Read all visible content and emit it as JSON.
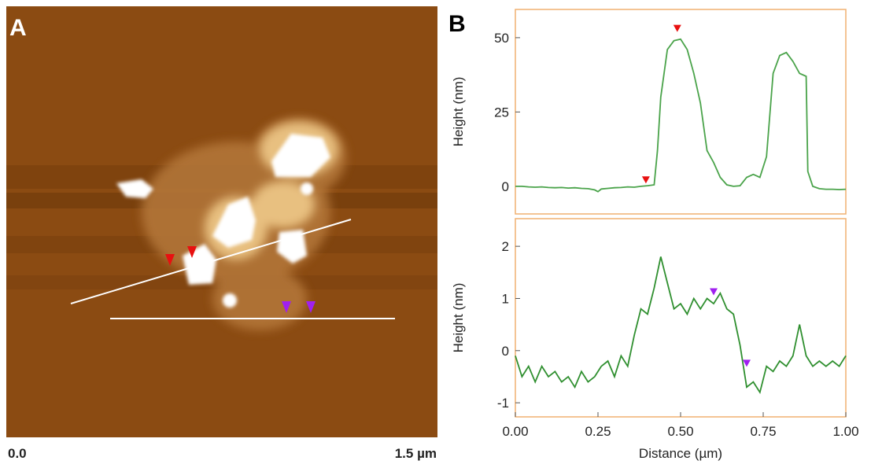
{
  "panel_a": {
    "label": "A",
    "scale_start": "0.0",
    "scale_end": "1.5 µm"
  },
  "panel_b_label": "B",
  "chart_data": [
    {
      "type": "line",
      "ylabel": "Height (nm)",
      "xlim": [
        0,
        1.0
      ],
      "ylim": [
        -9.3,
        59.5
      ],
      "yticks": [
        0,
        25,
        50
      ],
      "series": [
        {
          "color": "#4aa34a",
          "x": [
            0,
            0.02,
            0.04,
            0.06,
            0.08,
            0.1,
            0.12,
            0.14,
            0.16,
            0.18,
            0.2,
            0.22,
            0.24,
            0.25,
            0.26,
            0.28,
            0.3,
            0.32,
            0.34,
            0.36,
            0.38,
            0.4,
            0.42,
            0.43,
            0.44,
            0.46,
            0.48,
            0.5,
            0.52,
            0.54,
            0.56,
            0.58,
            0.6,
            0.62,
            0.64,
            0.66,
            0.68,
            0.7,
            0.72,
            0.74,
            0.76,
            0.78,
            0.8,
            0.82,
            0.84,
            0.86,
            0.88,
            0.885,
            0.9,
            0.92,
            0.94,
            0.96,
            0.98,
            1.0
          ],
          "values": [
            0,
            0,
            -0.2,
            -0.3,
            -0.2,
            -0.4,
            -0.5,
            -0.4,
            -0.6,
            -0.5,
            -0.7,
            -0.8,
            -1.2,
            -1.8,
            -0.9,
            -0.7,
            -0.5,
            -0.4,
            -0.2,
            -0.3,
            0,
            0.2,
            0.5,
            12,
            30,
            46,
            49,
            49.5,
            46,
            38,
            28,
            12,
            8,
            3,
            0.5,
            0,
            0.2,
            3,
            4,
            3,
            10,
            38,
            44,
            45,
            42,
            38,
            37,
            5,
            0,
            -0.8,
            -1,
            -1,
            -1.1,
            -1
          ]
        }
      ],
      "markers": [
        {
          "x": 0.49,
          "y": 53,
          "color": "#e81010"
        },
        {
          "x": 0.395,
          "y": 2,
          "color": "#e81010"
        }
      ]
    },
    {
      "type": "line",
      "xlabel": "Distance (µm)",
      "ylabel": "Height (nm)",
      "xlim": [
        0,
        1.0
      ],
      "ylim": [
        -1.27,
        2.53
      ],
      "yticks": [
        -1,
        0,
        1,
        2
      ],
      "xticks": [
        {
          "value": 0,
          "label": "0.00"
        },
        {
          "value": 0.25,
          "label": "0.25"
        },
        {
          "value": 0.5,
          "label": "0.50"
        },
        {
          "value": 0.75,
          "label": "0.75"
        },
        {
          "value": 1,
          "label": "1.00"
        }
      ],
      "series": [
        {
          "color": "#2f8f2f",
          "x": [
            0,
            0.02,
            0.04,
            0.06,
            0.08,
            0.1,
            0.12,
            0.14,
            0.16,
            0.18,
            0.2,
            0.22,
            0.24,
            0.26,
            0.28,
            0.3,
            0.32,
            0.34,
            0.36,
            0.38,
            0.4,
            0.42,
            0.44,
            0.46,
            0.48,
            0.5,
            0.52,
            0.54,
            0.56,
            0.58,
            0.6,
            0.62,
            0.64,
            0.66,
            0.68,
            0.7,
            0.72,
            0.74,
            0.76,
            0.78,
            0.8,
            0.82,
            0.84,
            0.86,
            0.88,
            0.9,
            0.92,
            0.94,
            0.96,
            0.98,
            1.0
          ],
          "values": [
            -0.1,
            -0.5,
            -0.3,
            -0.6,
            -0.3,
            -0.5,
            -0.4,
            -0.6,
            -0.5,
            -0.7,
            -0.4,
            -0.6,
            -0.5,
            -0.3,
            -0.2,
            -0.5,
            -0.1,
            -0.3,
            0.3,
            0.8,
            0.7,
            1.2,
            1.8,
            1.3,
            0.8,
            0.9,
            0.7,
            1.0,
            0.8,
            1.0,
            0.9,
            1.1,
            0.8,
            0.7,
            0.1,
            -0.7,
            -0.6,
            -0.8,
            -0.3,
            -0.4,
            -0.2,
            -0.3,
            -0.1,
            0.5,
            -0.1,
            -0.3,
            -0.2,
            -0.3,
            -0.2,
            -0.3,
            -0.1
          ]
        }
      ],
      "markers": [
        {
          "x": 0.6,
          "y": 1.12,
          "color": "#a020f0"
        },
        {
          "x": 0.7,
          "y": -0.25,
          "color": "#a020f0"
        }
      ]
    }
  ]
}
